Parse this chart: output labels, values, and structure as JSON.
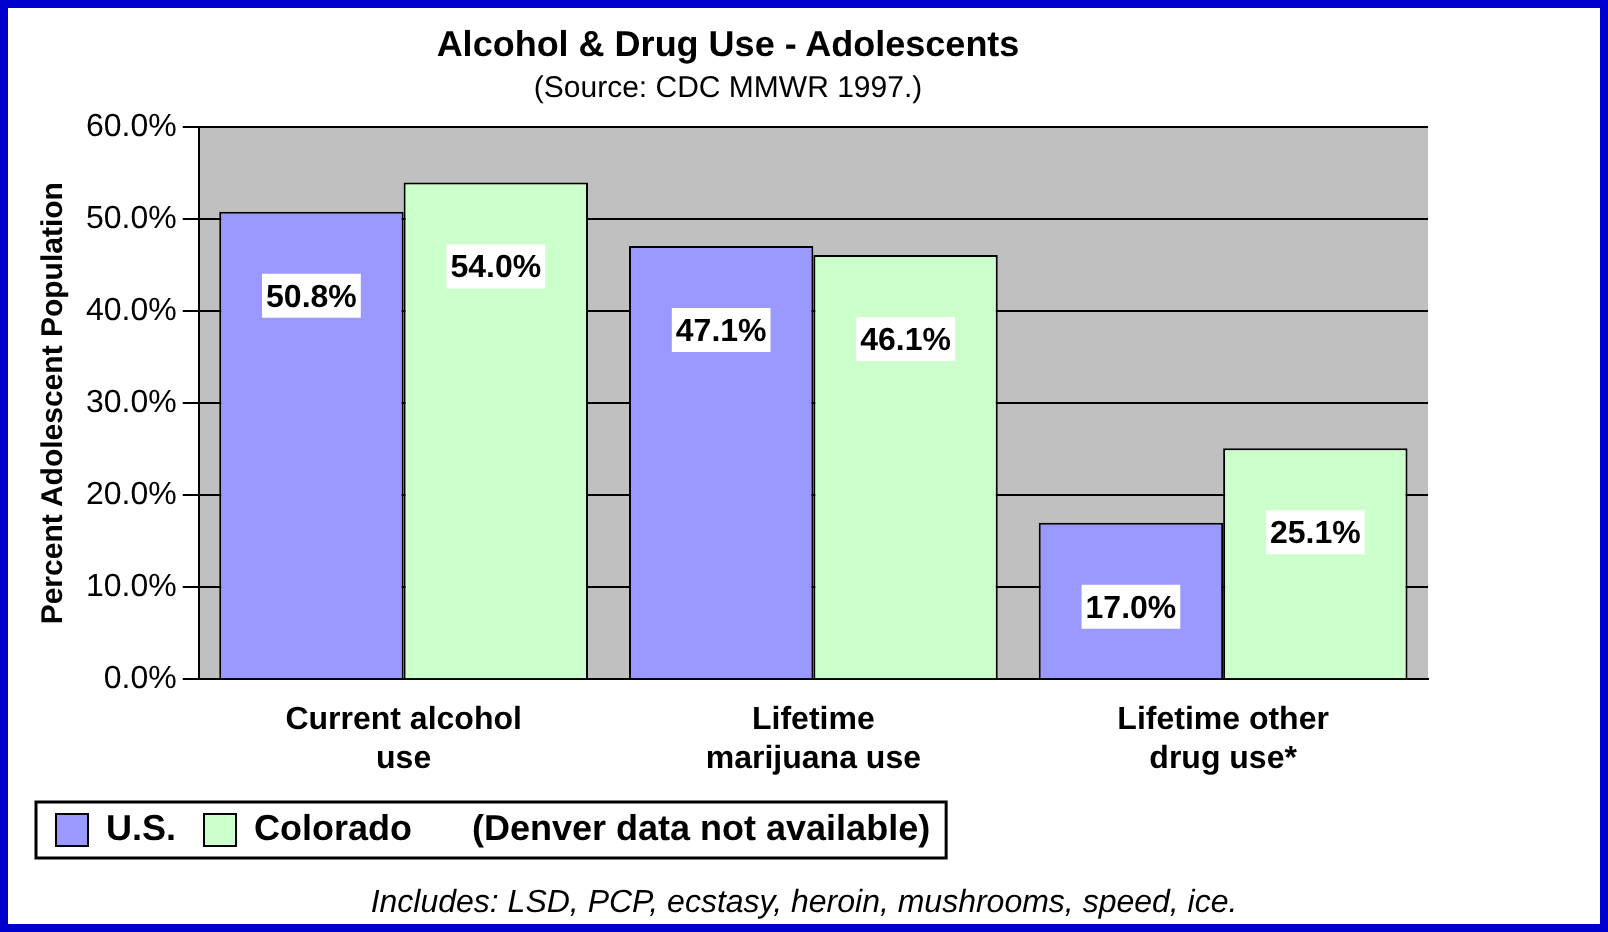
{
  "chart_data": {
    "type": "bar",
    "title": "Alcohol & Drug Use - Adolescents",
    "subtitle": "(Source: CDC MMWR 1997.)",
    "ylabel": "Percent Adolescent Population",
    "categories": [
      "Current alcohol use",
      "Lifetime marijuana use",
      "Lifetime other drug use*"
    ],
    "series": [
      {
        "name": "U.S.",
        "color": "#9999ff",
        "values": [
          50.8,
          47.1,
          17.0
        ],
        "value_labels": [
          "50.8%",
          "47.1%",
          "17.0%"
        ]
      },
      {
        "name": "Colorado",
        "color": "#ccffcc",
        "values": [
          54.0,
          46.1,
          25.1
        ],
        "value_labels": [
          "54.0%",
          "46.1%",
          "25.1%"
        ]
      }
    ],
    "ylim": [
      0,
      60
    ],
    "yticks": [
      {
        "value": 0,
        "label": "0.0%"
      },
      {
        "value": 10,
        "label": "10.0%"
      },
      {
        "value": 20,
        "label": "20.0%"
      },
      {
        "value": 30,
        "label": "30.0%"
      },
      {
        "value": 40,
        "label": "40.0%"
      },
      {
        "value": 50,
        "label": "50.0%"
      },
      {
        "value": 60,
        "label": "60.0%"
      }
    ],
    "grid": "y",
    "legend": "bottom",
    "annotations": [
      "(Denver data not available)",
      "Includes: LSD, PCP, ecstasy, heroin, mushrooms, speed, ice."
    ]
  }
}
